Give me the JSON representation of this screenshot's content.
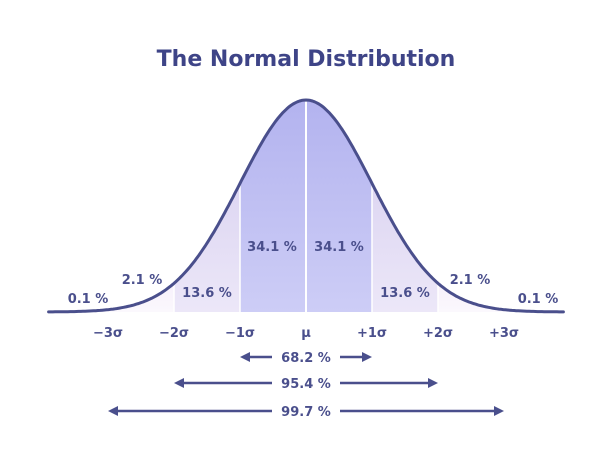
{
  "title": "The Normal Distribution",
  "colors": {
    "curve": "#4a4f8c",
    "text": "#4a4f8c",
    "title": "#3e4487",
    "center_fill": "#b3b3ef",
    "center_fill_light": "#cdcdf6",
    "mid_fill": "#ddd6f2",
    "tail_fill": "#f7f1fb",
    "divider": "#ffffff"
  },
  "chart_data": {
    "type": "area",
    "title": "The Normal Distribution",
    "x_ticks": [
      "−3σ",
      "−2σ",
      "−1σ",
      "μ",
      "+1σ",
      "+2σ",
      "+3σ"
    ],
    "x_tick_values": [
      -3,
      -2,
      -1,
      0,
      1,
      2,
      3
    ],
    "xlim": [
      -3.9,
      3.9
    ],
    "regions": [
      {
        "from": -4,
        "to": -3,
        "label": "0.1 %"
      },
      {
        "from": -3,
        "to": -2,
        "label": "2.1 %"
      },
      {
        "from": -2,
        "to": -1,
        "label": "13.6 %"
      },
      {
        "from": -1,
        "to": 0,
        "label": "34.1 %"
      },
      {
        "from": 0,
        "to": 1,
        "label": "34.1 %"
      },
      {
        "from": 1,
        "to": 2,
        "label": "13.6 %"
      },
      {
        "from": 2,
        "to": 3,
        "label": "2.1 %"
      },
      {
        "from": 3,
        "to": 4,
        "label": "0.1 %"
      }
    ],
    "spans": [
      {
        "from": -1,
        "to": 1,
        "label": "68.2 %"
      },
      {
        "from": -2,
        "to": 2,
        "label": "95.4 %"
      },
      {
        "from": -3,
        "to": 3,
        "label": "99.7 %"
      }
    ]
  }
}
